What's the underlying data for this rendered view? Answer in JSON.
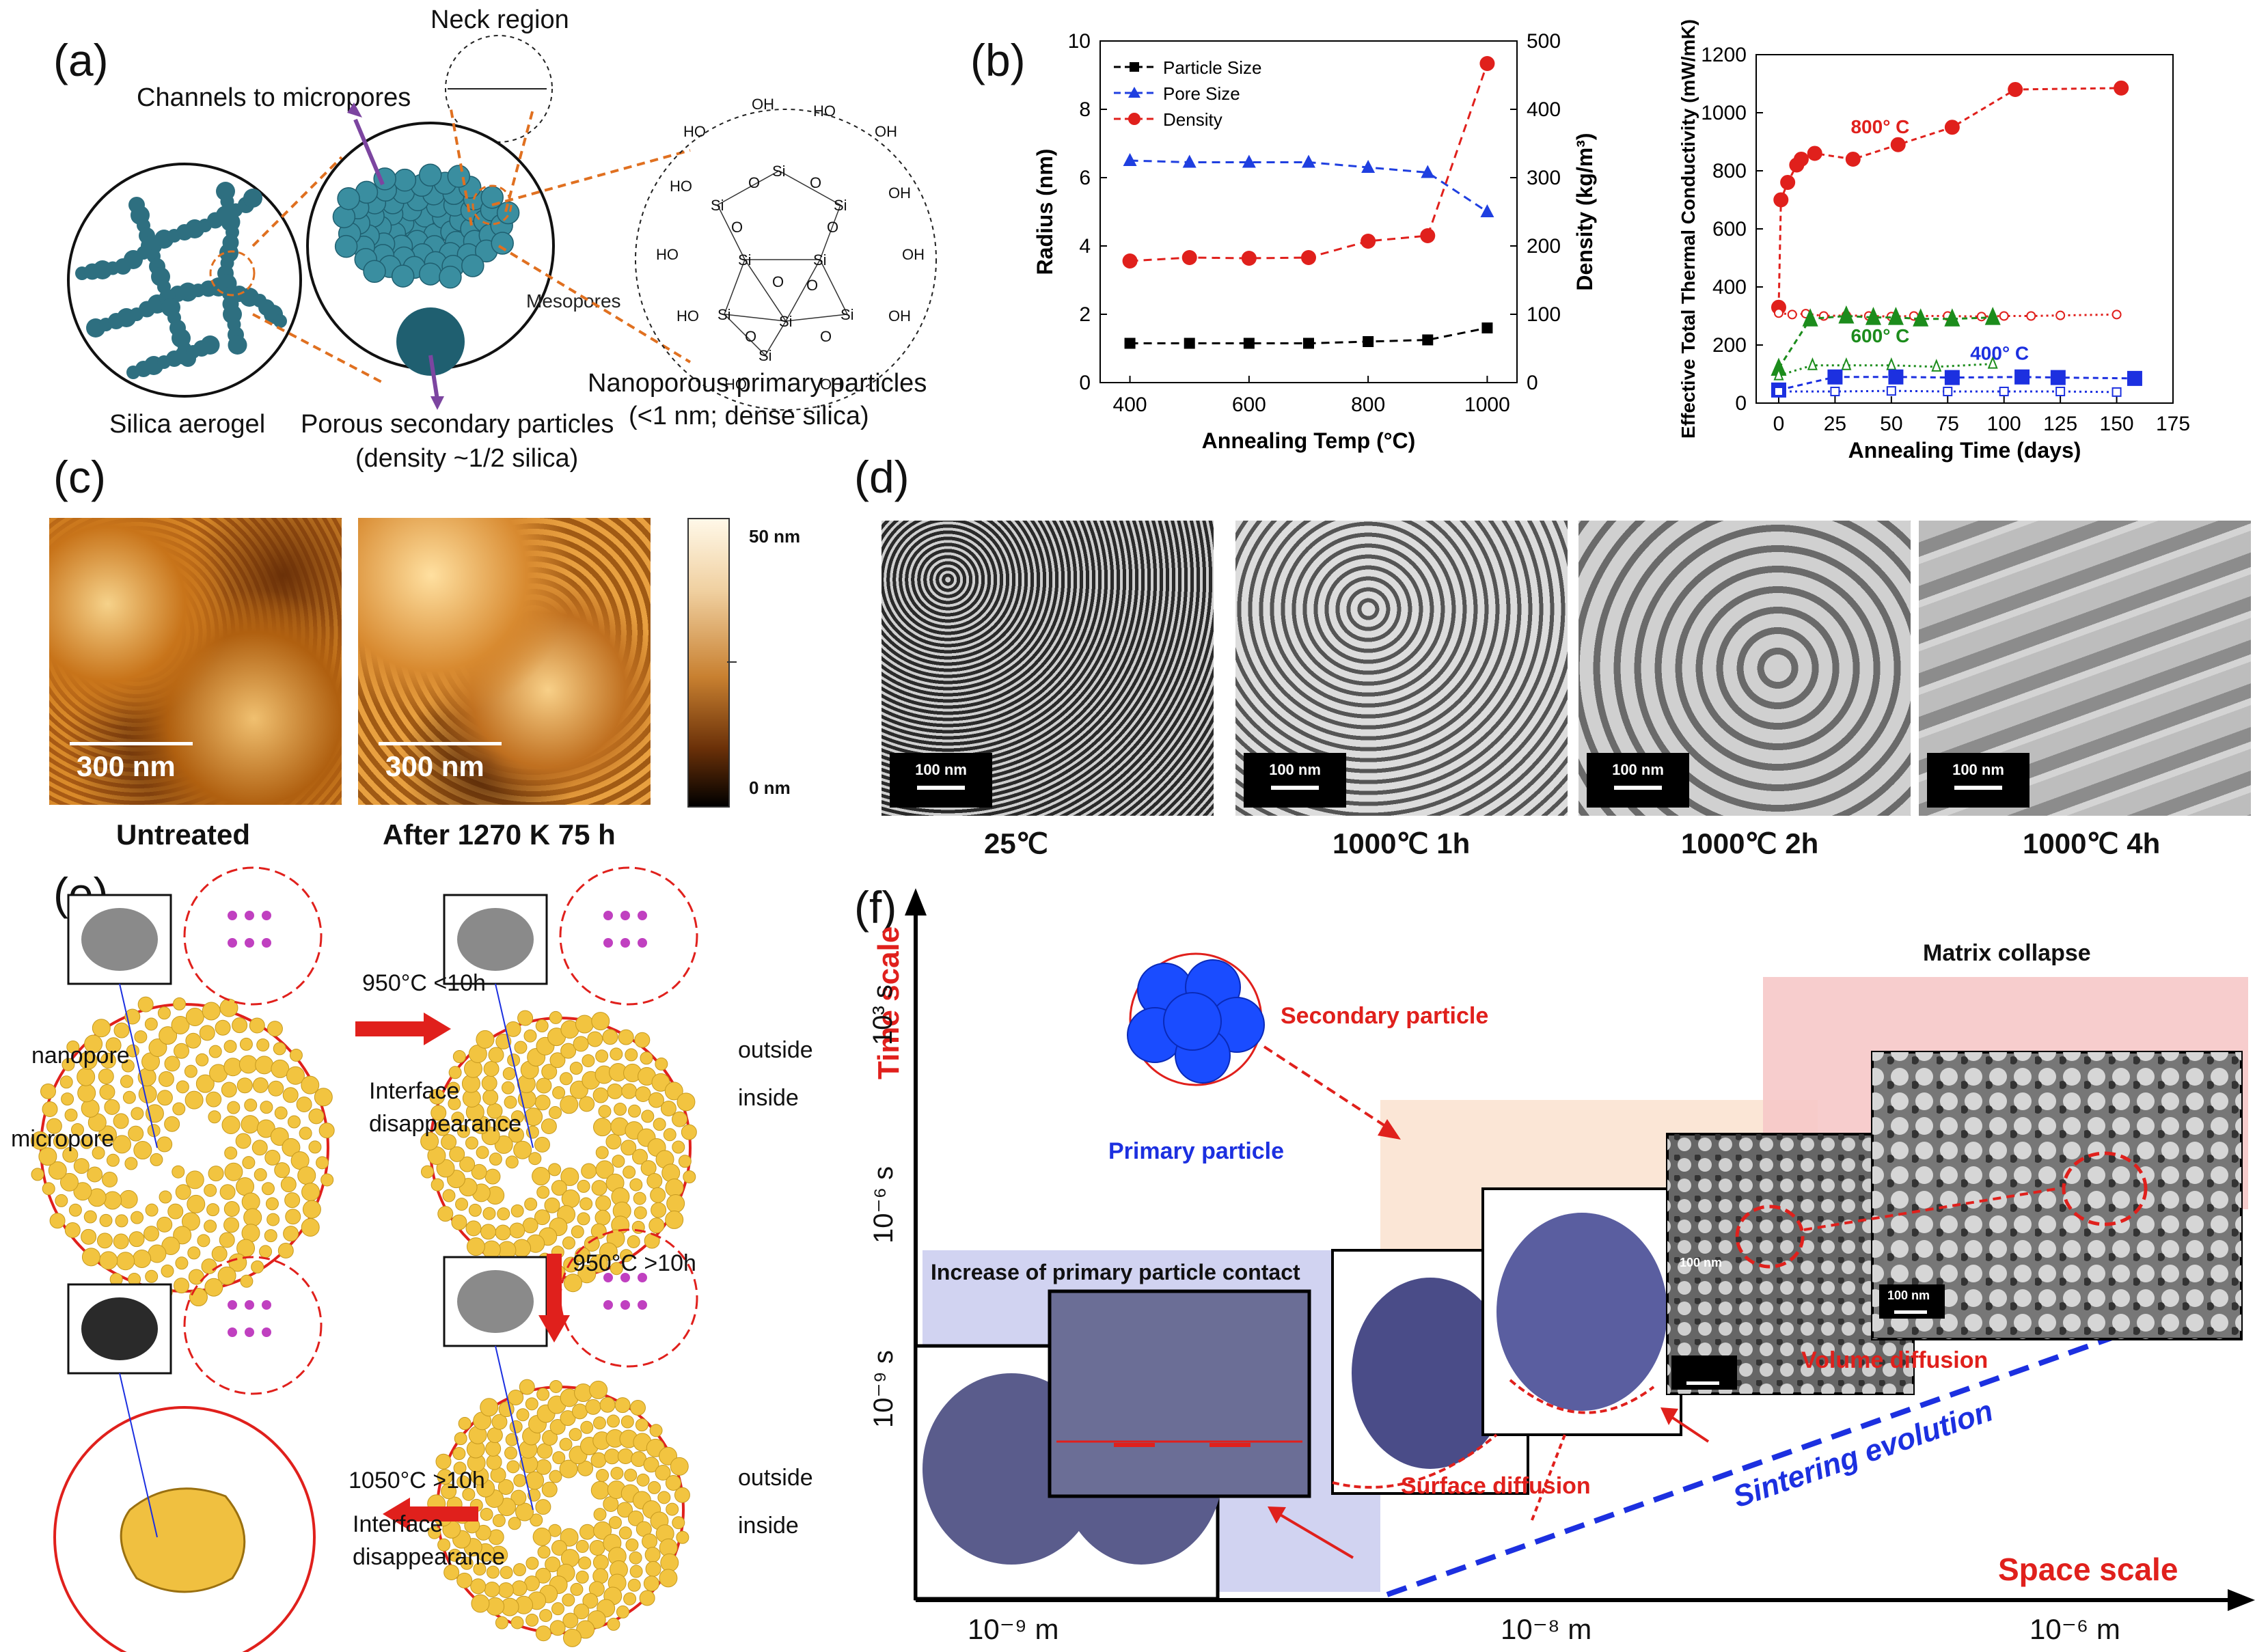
{
  "panels": {
    "a": {
      "label": "(a)",
      "neck_region": "Neck region",
      "channels": "Channels to micropores",
      "mesopores": "Mesopores",
      "silica_aerogel": "Silica aerogel",
      "porous_secondary": "Porous secondary particles",
      "porous_secondary_sub": "(density ~1/2 silica)",
      "nanoporous_primary": "Nanoporous primary particles",
      "nanoporous_primary_sub": "(<1 nm; dense silica)",
      "atoms": {
        "si": "Si",
        "o": "O",
        "oh": "OH",
        "ho": "HO"
      }
    },
    "b": {
      "label": "(b)"
    },
    "c": {
      "label": "(c)",
      "scale_left": "300 nm",
      "scale_right": "300 nm",
      "caption_left": "Untreated",
      "caption_right": "After 1270 K  75 h",
      "colorbar_top": "50 nm",
      "colorbar_bottom": "0 nm"
    },
    "d": {
      "label": "(d)",
      "scalebar": "100 nm",
      "captions": [
        "25℃",
        "1000℃ 1h",
        "1000℃ 2h",
        "1000℃ 4h"
      ]
    },
    "e": {
      "label": "(e)",
      "nanopore": "nanopore",
      "micropore": "micropore",
      "step1": "950°C <10h",
      "step2": "950°C >10h",
      "step3": "1050°C >10h",
      "interface": "Interface",
      "disappearance": "disappearance",
      "outside": "outside",
      "inside": "inside"
    },
    "f": {
      "label": "(f)",
      "time_scale": "Time scale",
      "space_scale": "Space scale",
      "t_ticks": [
        "10³ s",
        "10⁻⁶ s",
        "10⁻⁹ s"
      ],
      "x_ticks": [
        "10⁻⁹ m",
        "10⁻⁸ m",
        "10⁻⁶ m"
      ],
      "secondary_particle": "Secondary particle",
      "primary_particle": "Primary particle",
      "matrix_collapse": "Matrix collapse",
      "increase_contact": "Increase of primary particle contact",
      "volume_diffusion": "Volume diffusion",
      "surface_diffusion": "Surface diffusion",
      "sintering_evolution": "Sintering evolution",
      "scalebar": "100 nm"
    }
  },
  "chart_data": [
    {
      "type": "line",
      "xlabel": "Annealing Temp (°C)",
      "ylabel": "Radius (nm)",
      "y2label": "Density (kg/m³)",
      "xlim": [
        350,
        1050
      ],
      "ylim": [
        0,
        10
      ],
      "y2lim": [
        0,
        500
      ],
      "x_ticks": [
        400,
        600,
        800,
        1000
      ],
      "y_ticks": [
        0,
        2,
        4,
        6,
        8,
        10
      ],
      "y2_ticks": [
        0,
        100,
        200,
        300,
        400,
        500
      ],
      "legend_position": "top-left",
      "x": [
        400,
        500,
        600,
        700,
        800,
        900,
        1000
      ],
      "series": [
        {
          "name": "Particle Size",
          "axis": "left",
          "color": "#000000",
          "marker": "square",
          "values": [
            1.15,
            1.15,
            1.15,
            1.15,
            1.2,
            1.25,
            1.6
          ]
        },
        {
          "name": "Pore Size",
          "axis": "left",
          "color": "#1f3fe0",
          "marker": "triangle",
          "values": [
            6.5,
            6.45,
            6.45,
            6.45,
            6.3,
            6.15,
            5.0
          ]
        },
        {
          "name": "Density",
          "axis": "right",
          "color": "#e0201c",
          "marker": "circle",
          "values": [
            178,
            183,
            182,
            183,
            207,
            215,
            467
          ]
        }
      ]
    },
    {
      "type": "line",
      "xlabel": "Annealing Time (days)",
      "ylabel": "Effective Total Thermal Conductivity (mW/mK)",
      "xlim": [
        -10,
        175
      ],
      "ylim": [
        0,
        1200
      ],
      "x_ticks": [
        0,
        25,
        50,
        75,
        100,
        125,
        150,
        175
      ],
      "y_ticks": [
        0,
        200,
        400,
        600,
        800,
        1000,
        1200
      ],
      "series": [
        {
          "name": "800° C",
          "color": "#e0201c",
          "marker": "circle",
          "filled": true,
          "x": [
            0,
            1,
            4,
            8,
            10,
            16,
            33,
            53,
            77,
            105,
            152
          ],
          "y": [
            330,
            700,
            760,
            820,
            840,
            860,
            840,
            890,
            950,
            1080,
            1085
          ]
        },
        {
          "name": "800° C",
          "color": "#e0201c",
          "marker": "circle",
          "filled": false,
          "x": [
            0,
            6,
            12,
            20,
            30,
            40,
            50,
            60,
            75,
            90,
            100,
            112,
            125,
            150
          ],
          "y": [
            310,
            305,
            308,
            300,
            302,
            300,
            298,
            300,
            300,
            298,
            300,
            300,
            302,
            305
          ]
        },
        {
          "name": "600° C",
          "color": "#1c8c1c",
          "marker": "triangle",
          "filled": true,
          "x": [
            0,
            14,
            30,
            42,
            52,
            63,
            77,
            95
          ],
          "y": [
            120,
            290,
            300,
            295,
            295,
            290,
            290,
            295
          ]
        },
        {
          "name": "600° C",
          "color": "#1c8c1c",
          "marker": "triangle",
          "filled": false,
          "x": [
            0,
            15,
            30,
            50,
            70,
            95
          ],
          "y": [
            95,
            130,
            130,
            130,
            125,
            135
          ]
        },
        {
          "name": "400° C",
          "color": "#1c30e0",
          "marker": "square",
          "filled": true,
          "x": [
            0,
            25,
            52,
            77,
            108,
            124,
            158
          ],
          "y": [
            45,
            90,
            90,
            88,
            90,
            88,
            85
          ]
        },
        {
          "name": "400° C",
          "color": "#1c30e0",
          "marker": "square",
          "filled": false,
          "x": [
            0,
            25,
            50,
            75,
            100,
            125,
            150
          ],
          "y": [
            40,
            40,
            42,
            40,
            40,
            40,
            38
          ]
        }
      ]
    }
  ],
  "colors": {
    "red": "#e0201c",
    "blue": "#1f3fe0",
    "green": "#1c8c1c",
    "teal": "#2e7a8a",
    "gold": "#f2c440"
  },
  "icons": [
    "molecule-cluster-icon",
    "sphere-cluster-icon",
    "arrow-icon"
  ]
}
